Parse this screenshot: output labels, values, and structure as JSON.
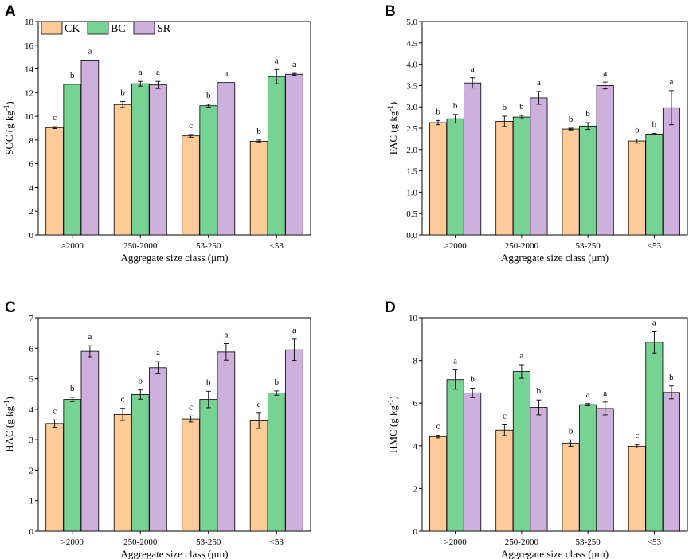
{
  "chart_data": [
    {
      "panel": "A",
      "type": "bar",
      "ylabel": "SOC (g kg",
      "ylabel_sup": "-1",
      "ylabel_end": ")",
      "xlabel": "Aggregate size class (μm)",
      "categories": [
        ">2000",
        "250-2000",
        "53-250",
        "<53"
      ],
      "ylim": [
        0,
        18
      ],
      "yticks": [
        0,
        2,
        4,
        6,
        8,
        10,
        12,
        14,
        16,
        18
      ],
      "ytick_labels": [
        "0",
        "2",
        "4",
        "6",
        "8",
        "10",
        "12",
        "14",
        "16",
        "18"
      ],
      "series": [
        {
          "name": "CK",
          "values": [
            9.05,
            11.0,
            8.35,
            7.9
          ],
          "errors": [
            0.08,
            0.25,
            0.12,
            0.1
          ],
          "labels": [
            "c",
            "b",
            "c",
            "b"
          ]
        },
        {
          "name": "BC",
          "values": [
            12.7,
            12.75,
            10.9,
            13.35
          ],
          "errors": [
            0.0,
            0.2,
            0.12,
            0.6
          ],
          "labels": [
            "b",
            "a",
            "b",
            "a"
          ]
        },
        {
          "name": "SR",
          "values": [
            14.75,
            12.65,
            12.85,
            13.55
          ],
          "errors": [
            0.0,
            0.3,
            0.0,
            0.08
          ],
          "labels": [
            "a",
            "a",
            "a",
            "a"
          ]
        }
      ]
    },
    {
      "panel": "B",
      "type": "bar",
      "ylabel": "FAC (g kg",
      "ylabel_sup": "-1",
      "ylabel_end": ")",
      "xlabel": "Aggregate size class (μm)",
      "categories": [
        ">2000",
        "250-2000",
        "53-250",
        "<53"
      ],
      "ylim": [
        0,
        5.0
      ],
      "yticks": [
        0,
        0.5,
        1.0,
        1.5,
        2.0,
        2.5,
        3.0,
        3.5,
        4.0,
        4.5,
        5.0
      ],
      "ytick_labels": [
        "0.0",
        "0.5",
        "1.0",
        "1.5",
        "2.0",
        "2.5",
        "3.0",
        "3.5",
        "4.0",
        "4.5",
        "5.0"
      ],
      "series": [
        {
          "name": "CK",
          "values": [
            2.63,
            2.66,
            2.48,
            2.2
          ],
          "errors": [
            0.05,
            0.12,
            0.02,
            0.05
          ],
          "labels": [
            "b",
            "b",
            "b",
            "b"
          ]
        },
        {
          "name": "BC",
          "values": [
            2.72,
            2.76,
            2.55,
            2.36
          ],
          "errors": [
            0.1,
            0.04,
            0.08,
            0.02
          ],
          "labels": [
            "b",
            "b",
            "b",
            "b"
          ]
        },
        {
          "name": "SR",
          "values": [
            3.56,
            3.21,
            3.5,
            2.98
          ],
          "errors": [
            0.12,
            0.15,
            0.08,
            0.4
          ],
          "labels": [
            "a",
            "a",
            "a",
            "a"
          ]
        }
      ]
    },
    {
      "panel": "C",
      "type": "bar",
      "ylabel": "HAC (g kg",
      "ylabel_sup": "-1",
      "ylabel_end": ")",
      "xlabel": "Aggregate size class (μm)",
      "categories": [
        ">2000",
        "250-2000",
        "53-250",
        "<53"
      ],
      "ylim": [
        0,
        7
      ],
      "yticks": [
        0,
        1,
        2,
        3,
        4,
        5,
        6,
        7
      ],
      "ytick_labels": [
        "0",
        "1",
        "2",
        "3",
        "4",
        "5",
        "6",
        "7"
      ],
      "series": [
        {
          "name": "CK",
          "values": [
            3.53,
            3.83,
            3.68,
            3.62
          ],
          "errors": [
            0.12,
            0.2,
            0.1,
            0.25
          ],
          "labels": [
            "c",
            "c",
            "c",
            "c"
          ]
        },
        {
          "name": "BC",
          "values": [
            4.32,
            4.48,
            4.32,
            4.53
          ],
          "errors": [
            0.07,
            0.15,
            0.27,
            0.07
          ],
          "labels": [
            "b",
            "b",
            "b",
            "b"
          ]
        },
        {
          "name": "SR",
          "values": [
            5.9,
            5.36,
            5.88,
            5.95
          ],
          "errors": [
            0.18,
            0.2,
            0.27,
            0.35
          ],
          "labels": [
            "a",
            "a",
            "a",
            "a"
          ]
        }
      ]
    },
    {
      "panel": "D",
      "type": "bar",
      "ylabel": "HMC (g kg",
      "ylabel_sup": "-1",
      "ylabel_end": ")",
      "xlabel": "Aggregate size class (μm)",
      "categories": [
        ">2000",
        "250-2000",
        "53-250",
        "<53"
      ],
      "ylim": [
        0,
        10
      ],
      "yticks": [
        0,
        2,
        4,
        6,
        8,
        10
      ],
      "ytick_labels": [
        "0",
        "2",
        "4",
        "6",
        "8",
        "10"
      ],
      "series": [
        {
          "name": "CK",
          "values": [
            4.43,
            4.73,
            4.13,
            3.98
          ],
          "errors": [
            0.06,
            0.25,
            0.15,
            0.08
          ],
          "labels": [
            "c",
            "c",
            "b",
            "c"
          ]
        },
        {
          "name": "BC",
          "values": [
            7.1,
            7.48,
            5.93,
            8.85
          ],
          "errors": [
            0.45,
            0.32,
            0.05,
            0.5
          ],
          "labels": [
            "a",
            "a",
            "a",
            "a"
          ]
        },
        {
          "name": "SR",
          "values": [
            6.48,
            5.8,
            5.75,
            6.5
          ],
          "errors": [
            0.22,
            0.35,
            0.3,
            0.3
          ],
          "labels": [
            "b",
            "b",
            "a",
            "b"
          ]
        }
      ]
    }
  ],
  "legend": {
    "items": [
      {
        "name": "CK",
        "color": "#FFCC99"
      },
      {
        "name": "BC",
        "color": "#77D394"
      },
      {
        "name": "SR",
        "color": "#CDB0DC"
      }
    ],
    "placement": "top-left of panel A"
  },
  "colors": {
    "CK": "#FFCC99",
    "BC": "#77D394",
    "SR": "#CDB0DC"
  }
}
